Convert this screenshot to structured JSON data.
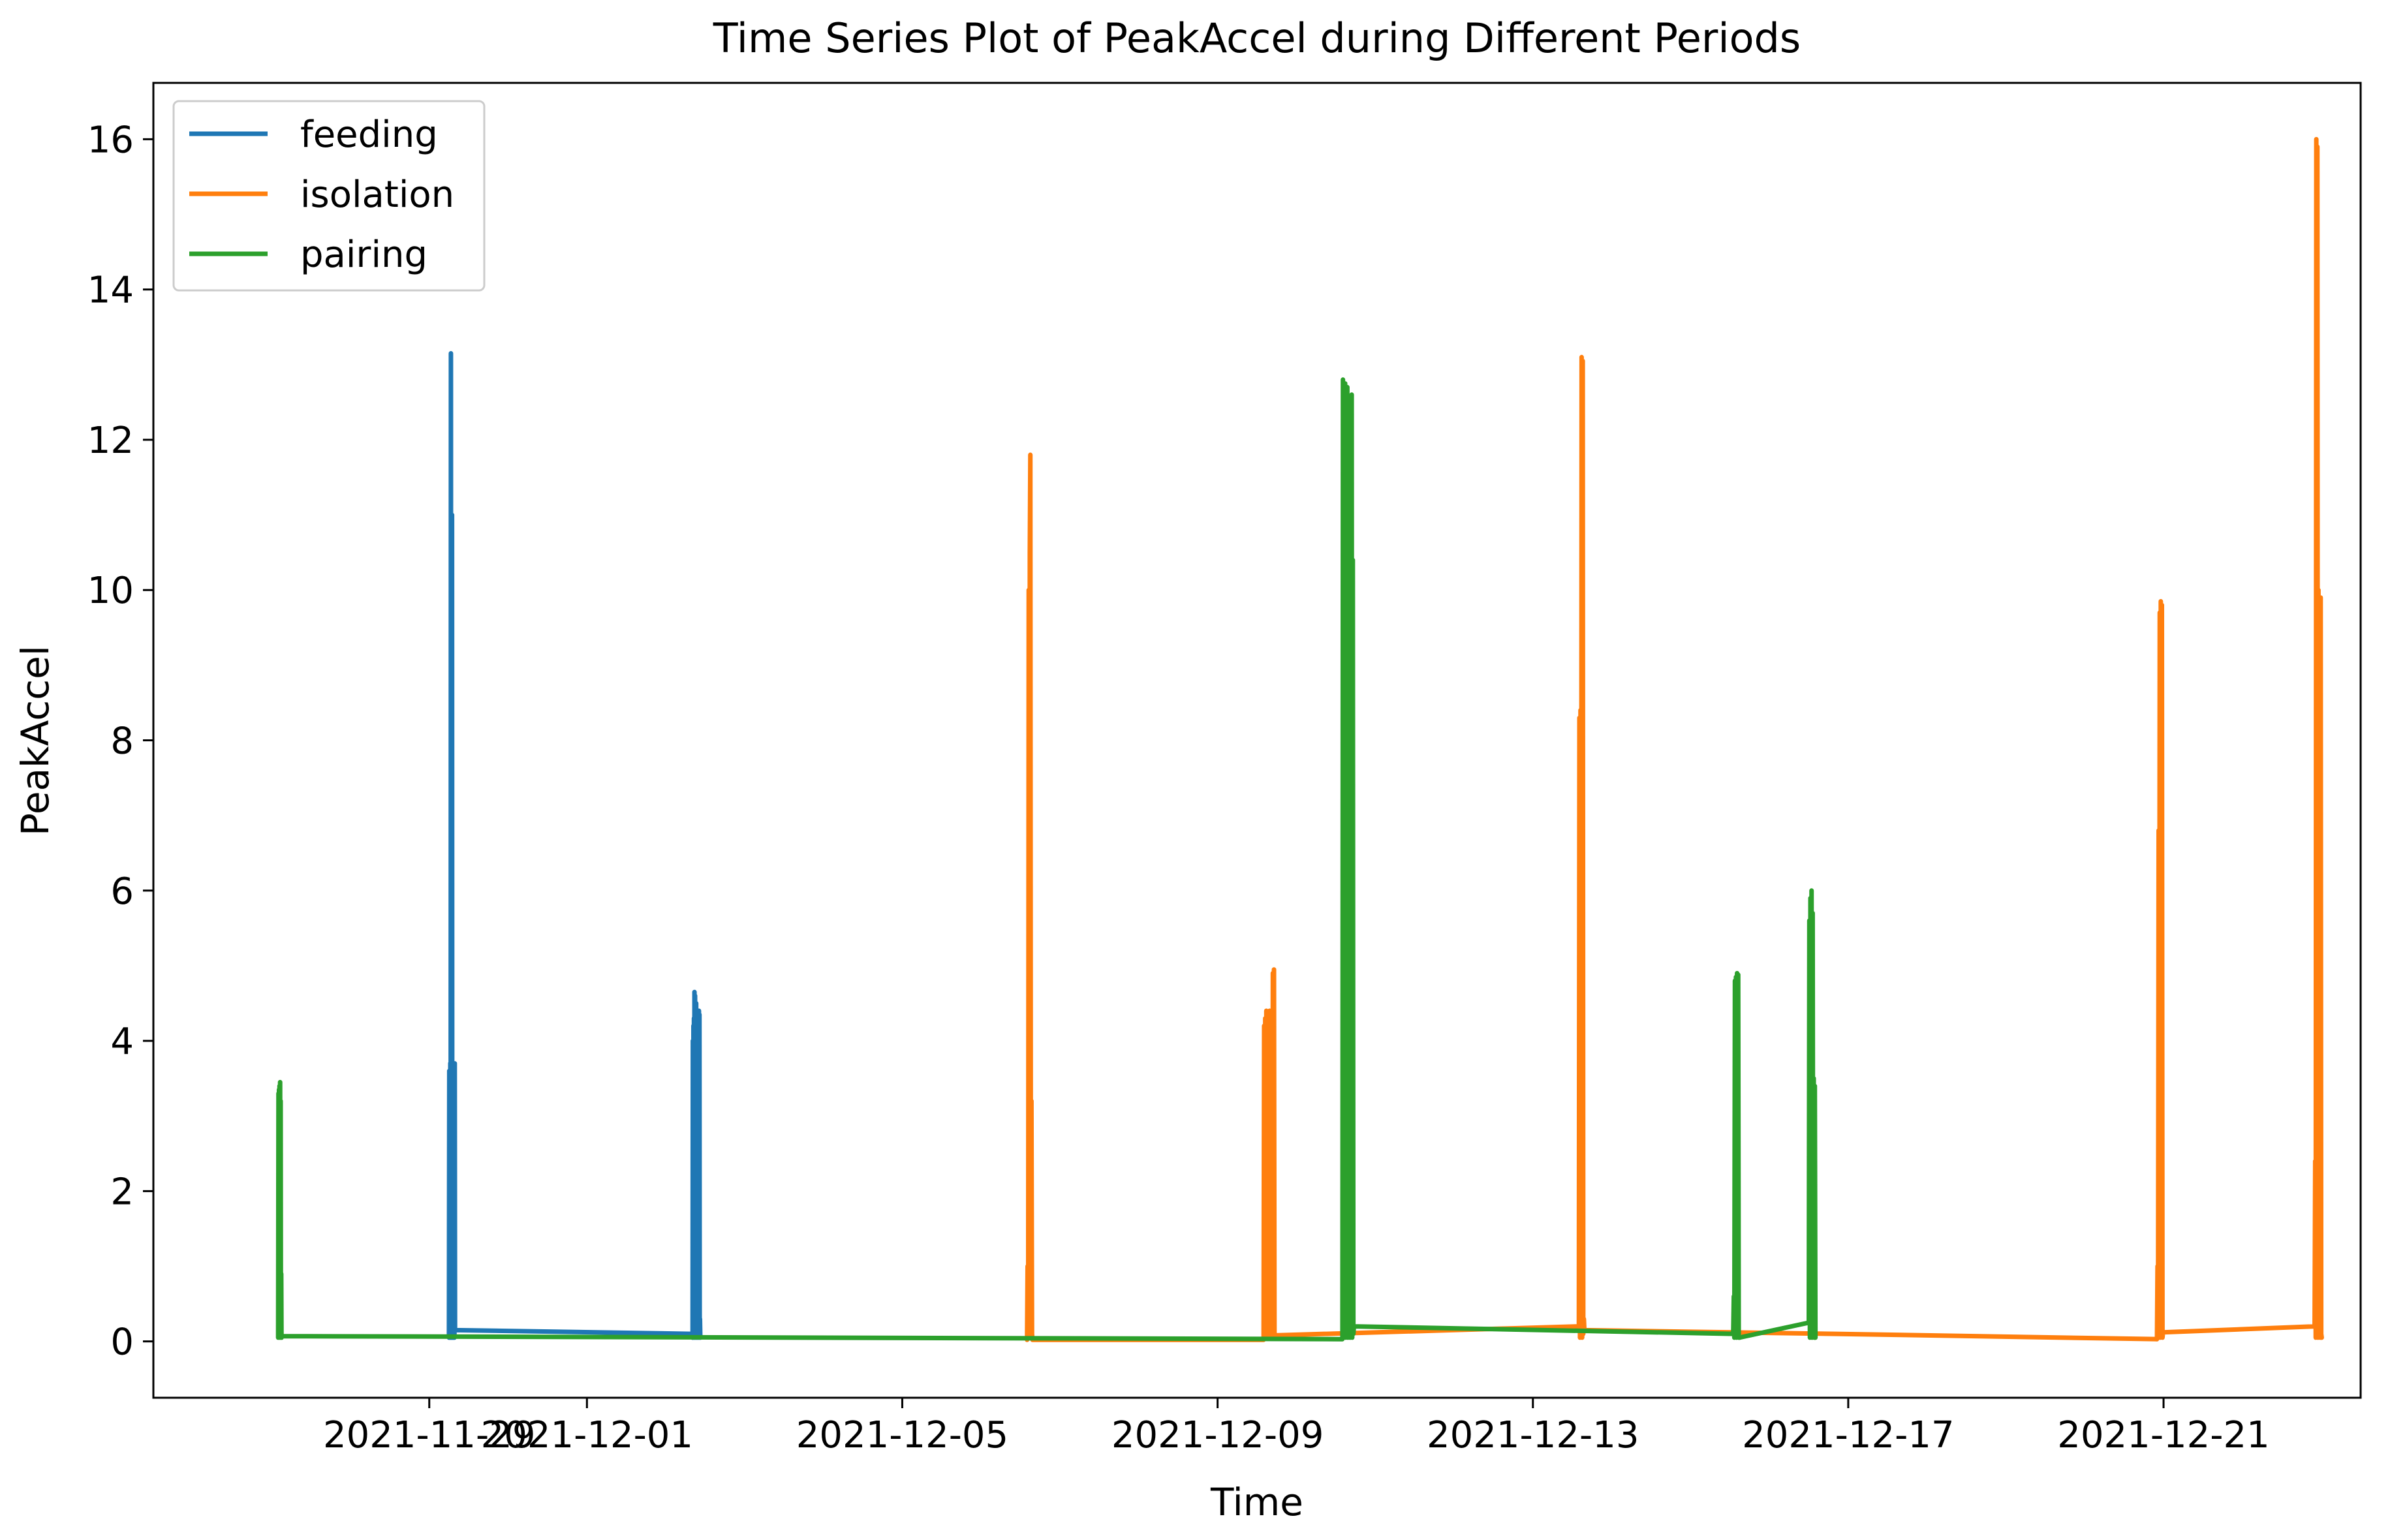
{
  "chart_data": {
    "type": "line",
    "title": "Time Series Plot of PeakAccel during Different Periods",
    "xlabel": "Time",
    "ylabel": "PeakAccel",
    "xlim": [
      "2021-11-25T12:00",
      "2021-12-23T12:00"
    ],
    "ylim": [
      -0.75,
      16.75
    ],
    "x_ticks": [
      "2021-11-29",
      "2021-12-01",
      "2021-12-05",
      "2021-12-09",
      "2021-12-13",
      "2021-12-17",
      "2021-12-21"
    ],
    "y_ticks": [
      0,
      2,
      4,
      6,
      8,
      10,
      12,
      14,
      16
    ],
    "grid": false,
    "legend": "top-left",
    "series": [
      {
        "name": "feeding",
        "color": "#1f77b4",
        "x": [
          "2021-11-29T06:00",
          "2021-11-29T06:05",
          "2021-11-29T06:10",
          "2021-11-29T06:15",
          "2021-11-29T06:20",
          "2021-11-29T06:25",
          "2021-11-29T06:30",
          "2021-11-29T06:35",
          "2021-11-29T06:40",
          "2021-11-29T06:45",
          "2021-11-29T06:50",
          "2021-11-29T06:55",
          "2021-11-29T07:00",
          "2021-11-29T07:05",
          "2021-11-29T07:10",
          "2021-11-29T07:15",
          "2021-11-29T07:20",
          "2021-11-29T07:25",
          "2021-11-29T07:30",
          "2021-11-29T07:35",
          "2021-11-29T07:40",
          "2021-11-29T07:45",
          "2021-11-29T07:50",
          "2021-12-02T08:00",
          "2021-12-02T08:10",
          "2021-12-02T08:15",
          "2021-12-02T08:20",
          "2021-12-02T08:25",
          "2021-12-02T08:30",
          "2021-12-02T08:35",
          "2021-12-02T08:40",
          "2021-12-02T08:45",
          "2021-12-02T08:50",
          "2021-12-02T08:55",
          "2021-12-02T09:00",
          "2021-12-02T09:05",
          "2021-12-02T09:10",
          "2021-12-02T09:15",
          "2021-12-02T09:20",
          "2021-12-02T09:25",
          "2021-12-02T09:30",
          "2021-12-02T09:35",
          "2021-12-02T09:40",
          "2021-12-02T09:45",
          "2021-12-02T09:50",
          "2021-12-02T09:55",
          "2021-12-02T10:00",
          "2021-12-02T10:05",
          "2021-12-02T10:10",
          "2021-12-02T10:15",
          "2021-12-02T10:20",
          "2021-12-02T10:25",
          "2021-12-02T10:30"
        ],
        "y": [
          0.05,
          3.6,
          0.1,
          2.5,
          0.05,
          3.7,
          0.1,
          13.15,
          0.05,
          10.0,
          0.1,
          11.0,
          0.05,
          3.7,
          0.1,
          2.0,
          0.05,
          3.5,
          0.1,
          1.5,
          0.05,
          3.7,
          0.15,
          0.1,
          0.05,
          4.0,
          0.1,
          4.2,
          0.05,
          4.3,
          0.1,
          4.65,
          0.05,
          4.6,
          0.1,
          4.4,
          0.05,
          4.5,
          0.1,
          4.3,
          0.05,
          4.35,
          0.1,
          4.2,
          0.05,
          4.3,
          0.1,
          4.4,
          0.05,
          4.35,
          0.1,
          0.3,
          0.05
        ]
      },
      {
        "name": "isolation",
        "color": "#ff7f0e",
        "x": [
          "2021-12-06T14:00",
          "2021-12-06T14:10",
          "2021-12-06T14:20",
          "2021-12-06T14:30",
          "2021-12-06T14:40",
          "2021-12-06T14:50",
          "2021-12-06T15:00",
          "2021-12-06T15:10",
          "2021-12-06T15:20",
          "2021-12-06T15:30",
          "2021-12-06T15:40",
          "2021-12-09T14:00",
          "2021-12-09T14:10",
          "2021-12-09T14:20",
          "2021-12-09T14:30",
          "2021-12-09T14:40",
          "2021-12-09T14:50",
          "2021-12-09T15:00",
          "2021-12-09T15:10",
          "2021-12-09T15:20",
          "2021-12-09T15:30",
          "2021-12-09T15:40",
          "2021-12-09T15:50",
          "2021-12-09T16:00",
          "2021-12-09T16:10",
          "2021-12-09T16:20",
          "2021-12-09T16:30",
          "2021-12-09T16:40",
          "2021-12-09T16:50",
          "2021-12-09T17:00",
          "2021-12-09T17:10",
          "2021-12-09T17:20",
          "2021-12-09T17:30",
          "2021-12-13T14:00",
          "2021-12-13T14:10",
          "2021-12-13T14:20",
          "2021-12-13T14:30",
          "2021-12-13T14:40",
          "2021-12-13T14:50",
          "2021-12-13T15:00",
          "2021-12-13T15:10",
          "2021-12-13T15:20",
          "2021-12-13T15:30",
          "2021-12-13T15:40",
          "2021-12-16T20:00",
          "2021-12-20T22:00",
          "2021-12-20T22:10",
          "2021-12-20T22:20",
          "2021-12-20T22:30",
          "2021-12-20T22:40",
          "2021-12-20T22:50",
          "2021-12-20T23:00",
          "2021-12-20T23:10",
          "2021-12-20T23:20",
          "2021-12-20T23:30",
          "2021-12-20T23:40",
          "2021-12-20T23:50",
          "2021-12-22T22:00",
          "2021-12-22T22:10",
          "2021-12-22T22:20",
          "2021-12-22T22:30",
          "2021-12-22T22:40",
          "2021-12-22T22:50",
          "2021-12-22T23:00",
          "2021-12-22T23:10",
          "2021-12-22T23:20",
          "2021-12-22T23:30",
          "2021-12-22T23:40",
          "2021-12-22T23:50",
          "2021-12-23T00:00",
          "2021-12-23T00:10"
        ],
        "y": [
          0.02,
          1.0,
          0.05,
          10.0,
          0.1,
          10.5,
          11.8,
          0.05,
          3.2,
          0.1,
          0.02,
          0.02,
          4.2,
          0.05,
          4.3,
          0.1,
          4.4,
          0.05,
          3.8,
          0.1,
          4.35,
          0.05,
          4.4,
          0.1,
          4.35,
          0.05,
          4.3,
          0.1,
          4.9,
          0.05,
          4.95,
          0.1,
          0.08,
          0.2,
          8.3,
          0.05,
          8.4,
          0.1,
          13.1,
          0.05,
          13.05,
          0.1,
          0.3,
          0.15,
          0.1,
          0.03,
          1.0,
          0.05,
          6.8,
          0.1,
          9.7,
          0.05,
          9.85,
          0.1,
          9.8,
          0.05,
          0.12,
          0.2,
          2.4,
          0.05,
          16.0,
          0.1,
          15.9,
          0.05,
          10.0,
          0.1,
          9.8,
          0.05,
          9.9,
          0.1,
          0.05
        ]
      },
      {
        "name": "pairing",
        "color": "#2ca02c",
        "x": [
          "2021-11-27T02:00",
          "2021-11-27T02:05",
          "2021-11-27T02:10",
          "2021-11-27T02:15",
          "2021-11-27T02:20",
          "2021-11-27T02:25",
          "2021-11-27T02:30",
          "2021-11-27T02:35",
          "2021-11-27T02:40",
          "2021-11-27T02:45",
          "2021-11-27T02:50",
          "2021-11-27T02:55",
          "2021-11-27T03:00",
          "2021-11-27T03:05",
          "2021-12-10T14:00",
          "2021-12-10T14:10",
          "2021-12-10T14:20",
          "2021-12-10T14:30",
          "2021-12-10T14:40",
          "2021-12-10T14:50",
          "2021-12-10T15:00",
          "2021-12-10T15:10",
          "2021-12-10T15:20",
          "2021-12-10T15:30",
          "2021-12-10T15:40",
          "2021-12-10T15:50",
          "2021-12-10T16:00",
          "2021-12-10T16:10",
          "2021-12-10T16:20",
          "2021-12-10T16:30",
          "2021-12-10T16:40",
          "2021-12-10T16:50",
          "2021-12-10T17:00",
          "2021-12-10T17:10",
          "2021-12-10T17:20",
          "2021-12-10T17:30",
          "2021-12-15T13:00",
          "2021-12-15T13:10",
          "2021-12-15T13:20",
          "2021-12-15T13:30",
          "2021-12-15T13:40",
          "2021-12-15T13:50",
          "2021-12-15T14:00",
          "2021-12-15T14:10",
          "2021-12-15T14:20",
          "2021-12-15T14:30",
          "2021-12-15T14:40",
          "2021-12-15T14:50",
          "2021-12-16T12:00",
          "2021-12-16T12:10",
          "2021-12-16T12:20",
          "2021-12-16T12:30",
          "2021-12-16T12:40",
          "2021-12-16T12:50",
          "2021-12-16T13:00",
          "2021-12-16T13:10",
          "2021-12-16T13:20",
          "2021-12-16T13:30",
          "2021-12-16T13:40",
          "2021-12-16T13:50",
          "2021-12-16T14:00"
        ],
        "y": [
          0.05,
          3.3,
          0.1,
          3.35,
          0.05,
          3.4,
          0.1,
          3.45,
          0.05,
          3.2,
          0.1,
          0.9,
          0.05,
          0.07,
          0.03,
          12.8,
          0.05,
          12.7,
          0.1,
          12.75,
          0.05,
          12.6,
          0.1,
          12.7,
          0.05,
          10.5,
          0.1,
          12.5,
          0.05,
          10.3,
          0.1,
          12.6,
          0.05,
          10.4,
          0.1,
          0.2,
          0.1,
          0.6,
          0.05,
          4.8,
          0.1,
          4.85,
          0.05,
          4.9,
          0.1,
          4.88,
          0.05,
          0.05,
          0.25,
          5.6,
          0.05,
          5.9,
          0.1,
          6.0,
          0.05,
          5.7,
          0.1,
          3.5,
          0.05,
          3.4,
          0.05
        ]
      }
    ]
  }
}
